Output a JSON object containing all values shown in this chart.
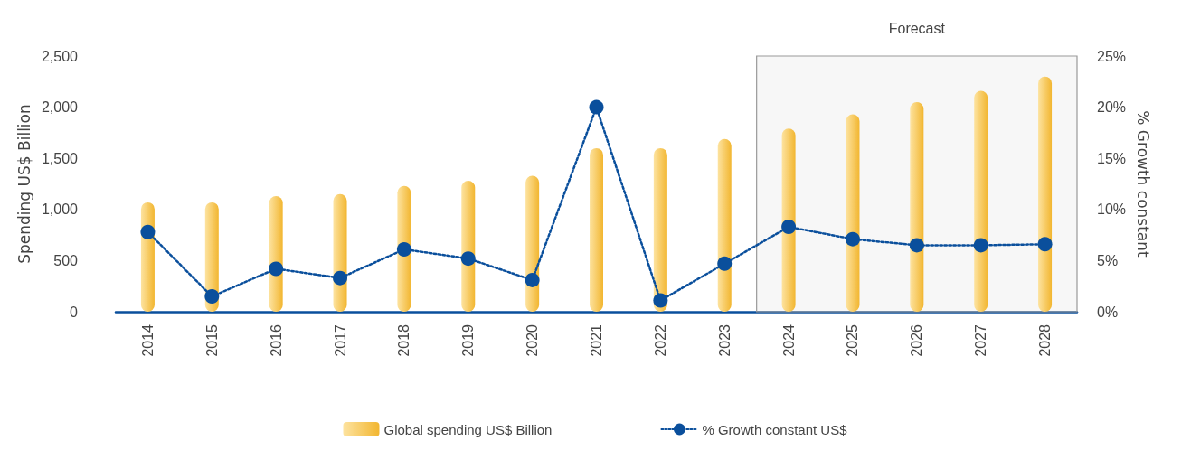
{
  "chart_data": {
    "type": "bar",
    "categories": [
      "2014",
      "2015",
      "2016",
      "2017",
      "2018",
      "2019",
      "2020",
      "2021",
      "2022",
      "2023",
      "2024",
      "2025",
      "2026",
      "2027",
      "2028"
    ],
    "series": [
      {
        "name": "Global spending US$ Billion",
        "color": "#f2b630",
        "values": [
          1070,
          1070,
          1130,
          1150,
          1230,
          1280,
          1330,
          1600,
          1600,
          1690,
          1790,
          1930,
          2050,
          2160,
          2300
        ]
      },
      {
        "name": "% Growth constant US$",
        "type": "line",
        "axis": "y2",
        "color": "#0a4f9c",
        "marker": "circle",
        "line_style": "dotted",
        "values": [
          7.8,
          1.5,
          4.2,
          3.3,
          6.1,
          5.2,
          3.1,
          20.0,
          1.1,
          4.7,
          8.3,
          7.1,
          6.5,
          6.5,
          6.6
        ]
      }
    ],
    "ylabel": "Spending US$ Billion",
    "y2label": "% Growth constant",
    "ylim": [
      0,
      2500
    ],
    "yticks": [
      0,
      500,
      {
        "value": 1000,
        "label": "1,000"
      },
      {
        "value": 1500,
        "label": "1,500"
      },
      {
        "value": 2000,
        "label": "2,000"
      },
      {
        "value": 2500,
        "label": "2,500"
      }
    ],
    "y2lim": [
      0,
      25
    ],
    "y2ticks": [
      {
        "value": 0,
        "label": "0%"
      },
      {
        "value": 5,
        "label": "5%"
      },
      {
        "value": 10,
        "label": "10%"
      },
      {
        "value": 15,
        "label": "15%"
      },
      {
        "value": 20,
        "label": "20%"
      },
      {
        "value": 25,
        "label": "25%"
      }
    ],
    "bands": [
      {
        "axis": "x",
        "from": "2024",
        "to": "2028",
        "label": "Forecast",
        "color": "#999999"
      }
    ],
    "grid": false,
    "legend": "bottom"
  }
}
